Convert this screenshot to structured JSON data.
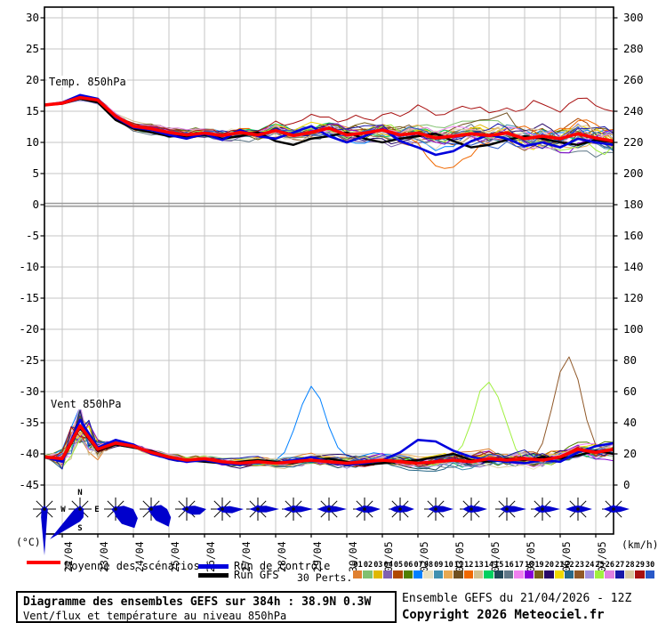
{
  "chart_data": {
    "type": "line",
    "title": "Diagramme des ensembles GEFS sur 384h : 38.9N 0.3W",
    "subtitle": "Vent/flux et température au niveau 850hPa",
    "x_axis": {
      "hours_range": [
        0,
        384
      ],
      "dates": [
        "22/04",
        "23/04",
        "24/04",
        "25/04",
        "26/04",
        "27/04",
        "28/04",
        "29/04",
        "30/04",
        "01/05",
        "02/05",
        "03/05",
        "04/05",
        "05/05",
        "06/05",
        "07/05"
      ]
    },
    "y_left": {
      "unit": "(°C)",
      "min": -45,
      "max": 30,
      "ticks": [
        30,
        25,
        20,
        15,
        10,
        5,
        0,
        -5,
        -10,
        -15,
        -20,
        -25,
        -30,
        -35,
        -40,
        -45
      ]
    },
    "y_right": {
      "unit": "(km/h)",
      "min": 0,
      "max": 300,
      "ticks": [
        300,
        280,
        260,
        240,
        220,
        200,
        180,
        160,
        140,
        120,
        100,
        80,
        60,
        40,
        20,
        0
      ]
    },
    "grid": true,
    "step_hours": 12,
    "temp_850": {
      "label": "Temp. 850hPa",
      "mean": [
        16,
        16.3,
        17.2,
        16.8,
        14.2,
        12.6,
        12.2,
        11.6,
        11.2,
        11.5,
        11.1,
        11.6,
        11.2,
        11.9,
        11.1,
        11.6,
        12.3,
        11.2,
        11.5,
        12,
        11.2,
        11.5,
        10.7,
        11,
        11.4,
        11.1,
        11.5,
        10.6,
        11,
        10.6,
        11.4,
        10.7,
        10.2
      ],
      "control": [
        16,
        16.4,
        17.6,
        17,
        14,
        12.4,
        12,
        11.2,
        10.6,
        11.4,
        10.4,
        12,
        11,
        10.6,
        11.6,
        12.6,
        11,
        10,
        11,
        12.2,
        10.2,
        9.2,
        8,
        8.6,
        10.2,
        11.2,
        10.6,
        9.4,
        10,
        9.2,
        10.6,
        10,
        9.6
      ],
      "gfs": [
        16,
        16.2,
        17,
        16.4,
        13.6,
        12.2,
        11.6,
        11,
        11,
        11.2,
        10.6,
        11,
        11.6,
        10.2,
        9.6,
        10.6,
        11,
        11.6,
        10.6,
        10,
        10.6,
        11,
        11.4,
        10.2,
        9.2,
        9.6,
        10.4,
        11,
        10.6,
        10,
        9.6,
        10.4,
        10
      ]
    },
    "wind_850": {
      "label": "Vent 850hPa",
      "mean": [
        18,
        17,
        38,
        23,
        27,
        25,
        21,
        18,
        16,
        17,
        15,
        14,
        15,
        14,
        15,
        16,
        15,
        14,
        15,
        16,
        15,
        14,
        15,
        16,
        15,
        17,
        16,
        17,
        16,
        18,
        23,
        21,
        23
      ],
      "control": [
        18,
        15,
        42,
        24,
        29,
        26,
        20,
        17,
        15,
        16,
        14,
        13,
        15,
        14,
        16,
        18,
        15,
        13,
        14,
        16,
        21,
        29,
        28,
        22,
        18,
        16,
        15,
        14,
        16,
        15,
        21,
        25,
        27
      ],
      "gfs": [
        18,
        16,
        37,
        22,
        26,
        24,
        22,
        18,
        16,
        15,
        14,
        15,
        16,
        15,
        14,
        16,
        17,
        15,
        13,
        14,
        15,
        16,
        18,
        20,
        16,
        15,
        17,
        16,
        18,
        17,
        19,
        22,
        20
      ]
    },
    "members": {
      "count": 30,
      "numbers": [
        "01",
        "02",
        "03",
        "04",
        "05",
        "06",
        "07",
        "08",
        "09",
        "10",
        "11",
        "12",
        "13",
        "14",
        "15",
        "16",
        "17",
        "18",
        "19",
        "20",
        "21",
        "22",
        "23",
        "24",
        "25",
        "26",
        "27",
        "28",
        "29",
        "30"
      ],
      "colors": [
        "#e08030",
        "#80c070",
        "#e0b800",
        "#8060b0",
        "#b04800",
        "#508000",
        "#0080ff",
        "#e8e0c0",
        "#4090b0",
        "#e8a850",
        "#705020",
        "#f06800",
        "#d0c090",
        "#00d060",
        "#204858",
        "#607888",
        "#f080f0",
        "#8800d8",
        "#786018",
        "#280868",
        "#f0d800",
        "#286888",
        "#905828",
        "#a090e0",
        "#a0f040",
        "#e080e0",
        "#1818a8",
        "#d8c8a0",
        "#a81010",
        "#2858c8"
      ]
    },
    "outliers": [
      {
        "panel": "temp",
        "member": 29,
        "type": "drift_high",
        "to": 7,
        "from_f": 0.3
      },
      {
        "panel": "temp",
        "member": 12,
        "type": "dip",
        "value": -6,
        "center_f": 0.72
      },
      {
        "panel": "wind",
        "member": 23,
        "type": "spike",
        "value": 58,
        "center_f": 0.92
      },
      {
        "panel": "wind",
        "member": 25,
        "type": "spike",
        "value": 50,
        "center_f": 0.78
      },
      {
        "panel": "wind",
        "member": 7,
        "type": "spike",
        "value": 45,
        "center_f": 0.47
      }
    ],
    "colors": {
      "mean": "#ff0000",
      "control": "#0000dd",
      "gfs": "#000000",
      "grid": "#c6c6c6",
      "zero_line": "#9a9a9a",
      "rose_fill": "#0000cc"
    },
    "compass_letters": [
      "N",
      "E",
      "S",
      "W"
    ],
    "compass_rose_index": 1,
    "wind_roses": [
      [
        4,
        3,
        3,
        3,
        4,
        4,
        5,
        8,
        52,
        10,
        5,
        4,
        4,
        3,
        3,
        3
      ],
      [
        5,
        3,
        3,
        3,
        5,
        4,
        6,
        10,
        14,
        20,
        48,
        10,
        6,
        4,
        3,
        3
      ],
      [
        4,
        3,
        4,
        10,
        20,
        27,
        30,
        18,
        8,
        4,
        4,
        4,
        5,
        3,
        3,
        3
      ],
      [
        4,
        3,
        5,
        12,
        18,
        24,
        28,
        14,
        6,
        4,
        3,
        3,
        5,
        3,
        3,
        3
      ],
      [
        4,
        3,
        5,
        10,
        22,
        16,
        9,
        5,
        4,
        3,
        3,
        4,
        6,
        4,
        3,
        3
      ],
      [
        4,
        3,
        4,
        9,
        24,
        12,
        6,
        4,
        4,
        3,
        3,
        4,
        7,
        4,
        3,
        3
      ],
      [
        5,
        4,
        5,
        10,
        24,
        10,
        5,
        4,
        4,
        3,
        4,
        5,
        10,
        5,
        4,
        4
      ],
      [
        4,
        4,
        5,
        9,
        22,
        9,
        5,
        4,
        4,
        4,
        4,
        6,
        12,
        6,
        4,
        4
      ],
      [
        5,
        4,
        5,
        8,
        20,
        8,
        5,
        4,
        4,
        4,
        5,
        7,
        13,
        7,
        5,
        4
      ],
      [
        4,
        4,
        5,
        8,
        18,
        9,
        6,
        4,
        4,
        4,
        4,
        6,
        11,
        6,
        4,
        4
      ],
      [
        5,
        4,
        6,
        8,
        16,
        8,
        5,
        4,
        4,
        4,
        5,
        7,
        12,
        7,
        5,
        4
      ],
      [
        4,
        4,
        5,
        9,
        20,
        9,
        5,
        4,
        4,
        4,
        4,
        5,
        9,
        5,
        4,
        4
      ],
      [
        5,
        4,
        5,
        8,
        18,
        8,
        5,
        4,
        4,
        4,
        5,
        6,
        10,
        6,
        5,
        4
      ],
      [
        4,
        4,
        5,
        9,
        22,
        9,
        5,
        4,
        4,
        4,
        4,
        5,
        8,
        5,
        4,
        4
      ],
      [
        5,
        4,
        5,
        8,
        20,
        8,
        5,
        4,
        4,
        4,
        5,
        6,
        10,
        6,
        4,
        4
      ],
      [
        4,
        4,
        5,
        7,
        16,
        7,
        5,
        4,
        4,
        4,
        5,
        7,
        14,
        7,
        5,
        4
      ],
      [
        5,
        4,
        5,
        8,
        18,
        8,
        5,
        4,
        4,
        4,
        5,
        6,
        12,
        6,
        5,
        4
      ]
    ]
  },
  "legend": {
    "mean": "Moyenne des scénarios",
    "control": "Run de contrôle",
    "gfs": "Run GFS",
    "perts": "30 Perts."
  },
  "footer": {
    "title": "Diagramme des ensembles GEFS sur 384h : 38.9N 0.3W",
    "subtitle": "Vent/flux et température au niveau 850hPa",
    "run": "Ensemble GEFS du 21/04/2026 - 12Z",
    "copyright": "Copyright 2026 Meteociel.fr"
  }
}
